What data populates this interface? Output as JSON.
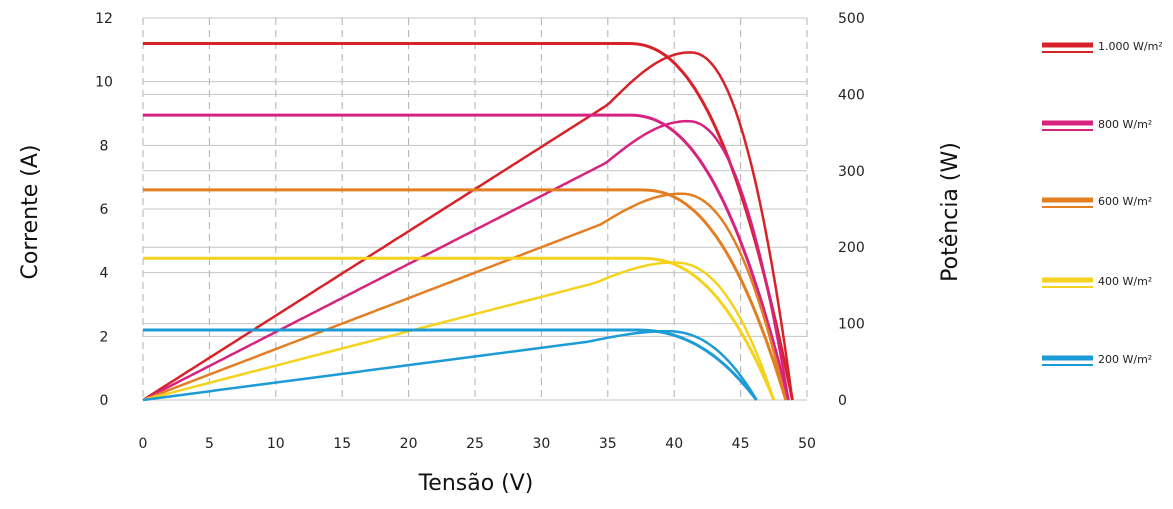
{
  "chart_data": {
    "type": "line",
    "xlabel": "Tensão (V)",
    "ylabel_left": "Corrente (A)",
    "ylabel_right": "Potência (W)",
    "xlim": [
      0,
      50
    ],
    "ylim_left": [
      0,
      12
    ],
    "ylim_right": [
      0,
      500
    ],
    "x_ticks": [
      "0",
      "5",
      "10",
      "15",
      "20",
      "25",
      "30",
      "35",
      "40",
      "45",
      "50"
    ],
    "y_left_ticks": [
      "0",
      "2",
      "4",
      "6",
      "8",
      "10",
      "12"
    ],
    "y_right_ticks": [
      "0",
      "100",
      "200",
      "300",
      "400",
      "500"
    ],
    "grid": "vertical dashed, horizontal solid",
    "legend_position": "right",
    "series": [
      {
        "name": "1.000 W/m²",
        "color": "#d7222a",
        "isc": 11.2,
        "voc": 48.9,
        "v_knee": 36.5,
        "v_mpp": 41.2,
        "p_max": 455
      },
      {
        "name": "800 W/m²",
        "color": "#d6237f",
        "isc": 8.95,
        "voc": 48.6,
        "v_knee": 36.5,
        "v_mpp": 41.0,
        "p_max": 365
      },
      {
        "name": "600 W/m²",
        "color": "#e37f22",
        "isc": 6.6,
        "voc": 48.4,
        "v_knee": 37.5,
        "v_mpp": 40.5,
        "p_max": 270
      },
      {
        "name": "400 W/m²",
        "color": "#f5d21d",
        "isc": 4.45,
        "voc": 47.5,
        "v_knee": 37.5,
        "v_mpp": 40.0,
        "p_max": 180
      },
      {
        "name": "200 W/m²",
        "color": "#1c9bd6",
        "isc": 2.2,
        "voc": 46.2,
        "v_knee": 37.0,
        "v_mpp": 39.5,
        "p_max": 90
      }
    ]
  }
}
